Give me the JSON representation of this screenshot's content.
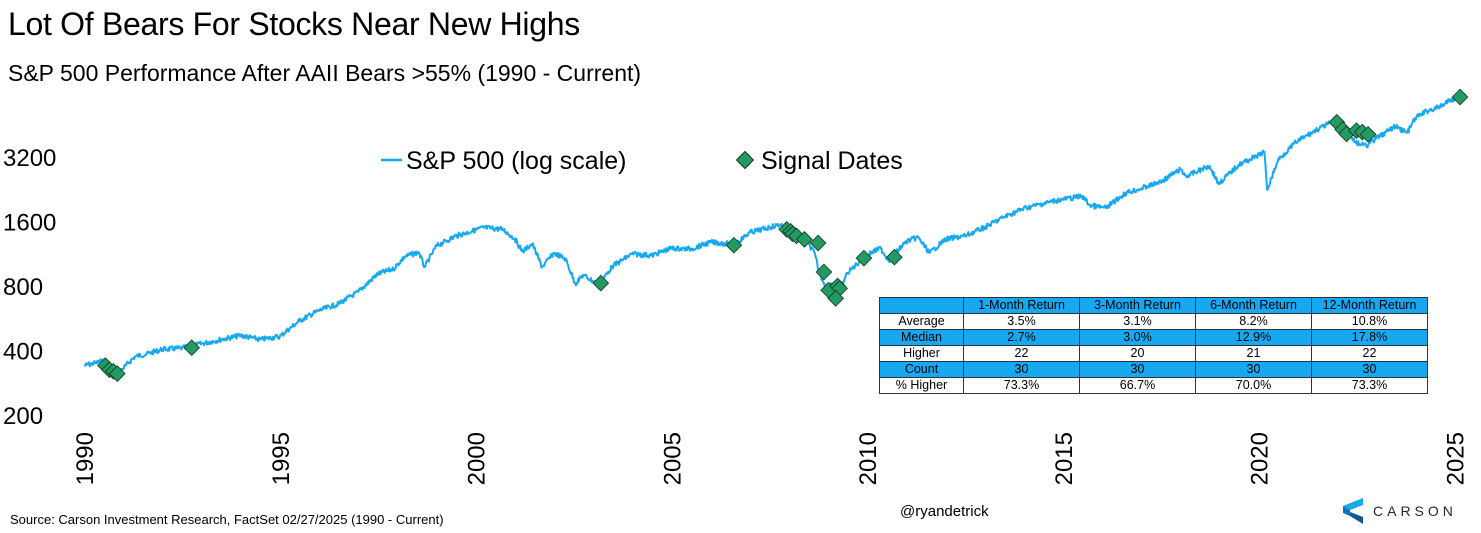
{
  "header": {
    "title": "Lot Of Bears For Stocks Near New Highs",
    "subtitle": "S&P 500 Performance After AAII Bears >55% (1990 - Current)"
  },
  "legend": {
    "series_label": "S&P 500 (log scale)",
    "signal_label": "Signal Dates"
  },
  "colors": {
    "line": "#16a9f2",
    "marker_fill": "#239a62",
    "marker_stroke": "#0e3a22",
    "table_highlight": "#16a9f2"
  },
  "chart_data": {
    "type": "line",
    "y_scale": "log",
    "ylim": [
      200,
      7000
    ],
    "xlim": [
      1990,
      2025.3
    ],
    "y_ticks": [
      200,
      400,
      800,
      1600,
      3200
    ],
    "y_tick_labels": [
      "200",
      "400",
      "800",
      "1600",
      "3200"
    ],
    "x_ticks": [
      1990,
      1995,
      2000,
      2005,
      2010,
      2015,
      2020,
      2025
    ],
    "x_tick_labels": [
      "1990",
      "1995",
      "2000",
      "2005",
      "2010",
      "2015",
      "2020",
      "2025"
    ],
    "series": [
      {
        "name": "S&P 500 (log scale)",
        "points": [
          [
            1990.0,
            340
          ],
          [
            1990.3,
            350
          ],
          [
            1990.55,
            360
          ],
          [
            1990.8,
            310
          ],
          [
            1991.0,
            330
          ],
          [
            1991.3,
            375
          ],
          [
            1991.6,
            385
          ],
          [
            1992.0,
            405
          ],
          [
            1992.5,
            410
          ],
          [
            1993.0,
            430
          ],
          [
            1993.5,
            450
          ],
          [
            1994.0,
            470
          ],
          [
            1994.5,
            450
          ],
          [
            1995.0,
            465
          ],
          [
            1995.5,
            550
          ],
          [
            1996.0,
            615
          ],
          [
            1996.5,
            660
          ],
          [
            1997.0,
            750
          ],
          [
            1997.5,
            910
          ],
          [
            1997.9,
            960
          ],
          [
            1998.2,
            1100
          ],
          [
            1998.55,
            1150
          ],
          [
            1998.7,
            980
          ],
          [
            1999.0,
            1230
          ],
          [
            1999.5,
            1370
          ],
          [
            1999.9,
            1440
          ],
          [
            2000.2,
            1500
          ],
          [
            2000.7,
            1470
          ],
          [
            2001.0,
            1330
          ],
          [
            2001.2,
            1160
          ],
          [
            2001.45,
            1260
          ],
          [
            2001.7,
            980
          ],
          [
            2002.0,
            1140
          ],
          [
            2002.3,
            1070
          ],
          [
            2002.55,
            820
          ],
          [
            2002.75,
            900
          ],
          [
            2003.15,
            810
          ],
          [
            2003.5,
            990
          ],
          [
            2004.0,
            1130
          ],
          [
            2004.5,
            1110
          ],
          [
            2005.0,
            1200
          ],
          [
            2005.5,
            1190
          ],
          [
            2006.0,
            1280
          ],
          [
            2006.45,
            1260
          ],
          [
            2006.6,
            1240
          ],
          [
            2007.0,
            1420
          ],
          [
            2007.5,
            1500
          ],
          [
            2007.8,
            1550
          ],
          [
            2008.0,
            1400
          ],
          [
            2008.4,
            1330
          ],
          [
            2008.65,
            1150
          ],
          [
            2008.8,
            900
          ],
          [
            2008.95,
            800
          ],
          [
            2009.1,
            820
          ],
          [
            2009.18,
            690
          ],
          [
            2009.5,
            920
          ],
          [
            2010.0,
            1120
          ],
          [
            2010.35,
            1200
          ],
          [
            2010.55,
            1050
          ],
          [
            2011.0,
            1290
          ],
          [
            2011.3,
            1350
          ],
          [
            2011.6,
            1140
          ],
          [
            2012.0,
            1320
          ],
          [
            2012.5,
            1370
          ],
          [
            2013.0,
            1500
          ],
          [
            2013.5,
            1680
          ],
          [
            2014.0,
            1840
          ],
          [
            2014.8,
            2000
          ],
          [
            2015.5,
            2100
          ],
          [
            2015.7,
            1900
          ],
          [
            2016.1,
            1850
          ],
          [
            2016.6,
            2170
          ],
          [
            2017.0,
            2280
          ],
          [
            2017.5,
            2450
          ],
          [
            2018.0,
            2800
          ],
          [
            2018.15,
            2600
          ],
          [
            2018.75,
            2910
          ],
          [
            2018.98,
            2400
          ],
          [
            2019.5,
            2950
          ],
          [
            2019.95,
            3230
          ],
          [
            2020.15,
            3380
          ],
          [
            2020.22,
            2250
          ],
          [
            2020.5,
            3100
          ],
          [
            2020.95,
            3750
          ],
          [
            2021.5,
            4300
          ],
          [
            2021.98,
            4750
          ],
          [
            2022.3,
            4300
          ],
          [
            2022.45,
            3750
          ],
          [
            2022.75,
            3600
          ],
          [
            2022.8,
            3650
          ],
          [
            2023.0,
            3900
          ],
          [
            2023.5,
            4450
          ],
          [
            2023.8,
            4150
          ],
          [
            2024.0,
            4850
          ],
          [
            2024.3,
            5250
          ],
          [
            2024.6,
            5450
          ],
          [
            2024.9,
            5900
          ],
          [
            2025.15,
            6100
          ]
        ]
      }
    ],
    "signals": {
      "name": "Signal Dates",
      "points": [
        [
          1990.55,
          340
        ],
        [
          1990.65,
          325
        ],
        [
          1990.75,
          320
        ],
        [
          1990.85,
          312
        ],
        [
          1992.75,
          412
        ],
        [
          2003.2,
          825
        ],
        [
          2006.6,
          1240
        ],
        [
          2007.95,
          1470
        ],
        [
          2008.05,
          1440
        ],
        [
          2008.1,
          1400
        ],
        [
          2008.2,
          1370
        ],
        [
          2008.4,
          1320
        ],
        [
          2008.75,
          1270
        ],
        [
          2008.9,
          930
        ],
        [
          2009.02,
          765
        ],
        [
          2009.25,
          800
        ],
        [
          2009.3,
          780
        ],
        [
          2009.2,
          700
        ],
        [
          2009.92,
          1080
        ],
        [
          2010.7,
          1090
        ],
        [
          2022.0,
          4650
        ],
        [
          2022.15,
          4300
        ],
        [
          2022.25,
          4100
        ],
        [
          2022.5,
          4250
        ],
        [
          2022.65,
          4180
        ],
        [
          2022.8,
          4080
        ],
        [
          2025.15,
          6100
        ]
      ]
    }
  },
  "table": {
    "columns": [
      "",
      "1-Month Return",
      "3-Month Return",
      "6-Month Return",
      "12-Month Return"
    ],
    "rows": [
      {
        "label": "Average",
        "values": [
          "3.5%",
          "3.1%",
          "8.2%",
          "10.8%"
        ]
      },
      {
        "label": "Median",
        "values": [
          "2.7%",
          "3.0%",
          "12.9%",
          "17.8%"
        ]
      },
      {
        "label": "Higher",
        "values": [
          "22",
          "20",
          "21",
          "22"
        ]
      },
      {
        "label": "Count",
        "values": [
          "30",
          "30",
          "30",
          "30"
        ]
      },
      {
        "label": "% Higher",
        "values": [
          "73.3%",
          "66.7%",
          "70.0%",
          "73.3%"
        ]
      }
    ]
  },
  "footer": {
    "source": "Source: Carson Investment Research, FactSet 02/27/2025 (1990 - Current)",
    "handle": "@ryandetrick",
    "logo_text": "CARSON"
  }
}
